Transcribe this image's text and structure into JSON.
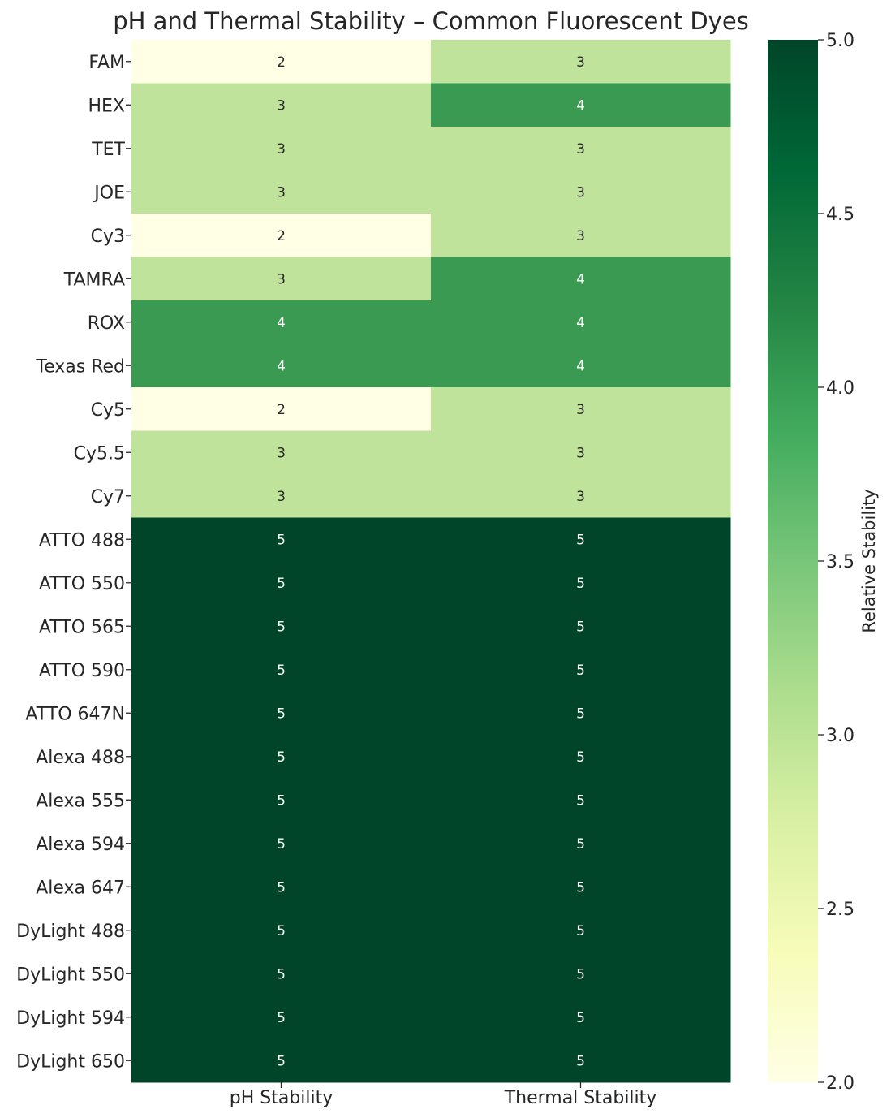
{
  "chart_data": {
    "type": "heatmap",
    "title": "pH and Thermal Stability – Common Fluorescent Dyes",
    "columns": [
      "pH Stability",
      "Thermal Stability"
    ],
    "rows": [
      "FAM",
      "HEX",
      "TET",
      "JOE",
      "Cy3",
      "TAMRA",
      "ROX",
      "Texas Red",
      "Cy5",
      "Cy5.5",
      "Cy7",
      "ATTO 488",
      "ATTO 550",
      "ATTO 565",
      "ATTO 590",
      "ATTO 647N",
      "Alexa 488",
      "Alexa 555",
      "Alexa 594",
      "Alexa 647",
      "DyLight 488",
      "DyLight 550",
      "DyLight 594",
      "DyLight 650"
    ],
    "values": [
      [
        2,
        3
      ],
      [
        3,
        4
      ],
      [
        3,
        3
      ],
      [
        3,
        3
      ],
      [
        2,
        3
      ],
      [
        3,
        4
      ],
      [
        4,
        4
      ],
      [
        4,
        4
      ],
      [
        2,
        3
      ],
      [
        3,
        3
      ],
      [
        3,
        3
      ],
      [
        5,
        5
      ],
      [
        5,
        5
      ],
      [
        5,
        5
      ],
      [
        5,
        5
      ],
      [
        5,
        5
      ],
      [
        5,
        5
      ],
      [
        5,
        5
      ],
      [
        5,
        5
      ],
      [
        5,
        5
      ],
      [
        5,
        5
      ],
      [
        5,
        5
      ],
      [
        5,
        5
      ],
      [
        5,
        5
      ]
    ],
    "colormap": "YlGn",
    "colorbar": {
      "label": "Relative Stability",
      "min": 2.0,
      "max": 5.0,
      "ticks": [
        "2.0",
        "2.5",
        "3.0",
        "3.5",
        "4.0",
        "4.5",
        "5.0"
      ]
    },
    "colors": {
      "v2": "#ffffe5",
      "v3": "#c0e39c",
      "v4": "#3a9a51",
      "v5": "#004529"
    },
    "annotations": true
  }
}
